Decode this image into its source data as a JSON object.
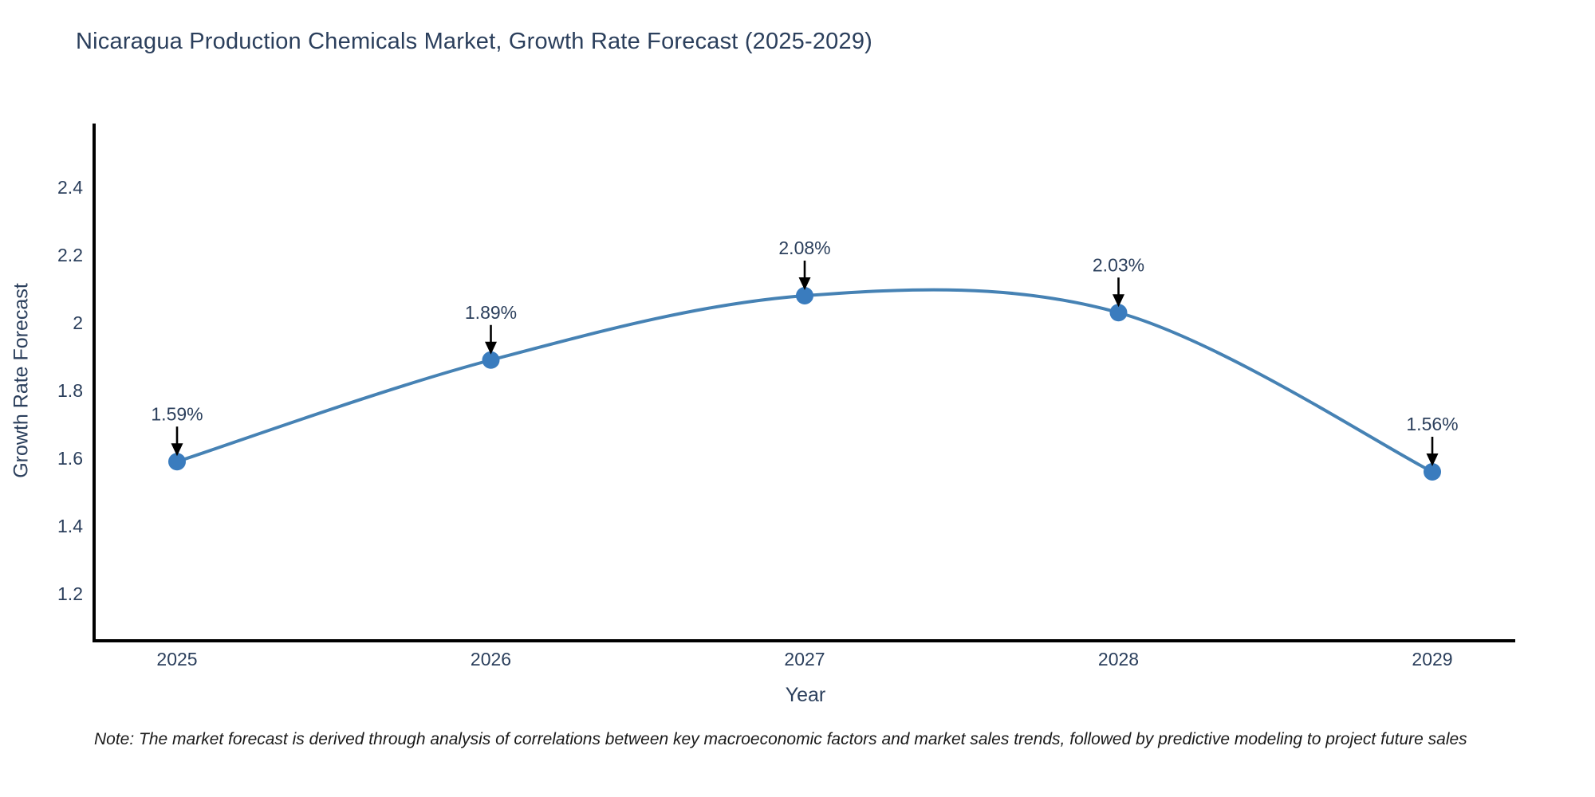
{
  "chart_data": {
    "type": "line",
    "title": "Nicaragua Production Chemicals Market, Growth Rate Forecast (2025-2029)",
    "xlabel": "Year",
    "ylabel": "Growth Rate Forecast",
    "x": [
      2025,
      2026,
      2027,
      2028,
      2029
    ],
    "values": [
      1.59,
      1.89,
      2.08,
      2.03,
      1.56
    ],
    "point_labels": [
      "1.59%",
      "1.89%",
      "2.08%",
      "2.03%",
      "1.56%"
    ],
    "x_tick_labels": [
      "2025",
      "2026",
      "2027",
      "2028",
      "2029"
    ],
    "y_ticks": [
      1.2,
      1.4,
      1.6,
      1.8,
      2,
      2.2,
      2.4
    ],
    "y_tick_labels": [
      "1.2",
      "1.4",
      "1.6",
      "1.8",
      "2",
      "2.2",
      "2.4"
    ],
    "ylim": [
      1.06,
      2.59
    ],
    "grid": false,
    "legend": false,
    "line_color": "#4682b4",
    "marker_color": "#3a7cbe",
    "axis_color": "#000000",
    "text_color": "#2b3f5c",
    "annotation_arrow_color": "#000000"
  },
  "note": {
    "text": "Note: The market forecast is derived through analysis of correlations between key macroeconomic factors and market sales trends, followed by predictive modeling to project future sales"
  }
}
